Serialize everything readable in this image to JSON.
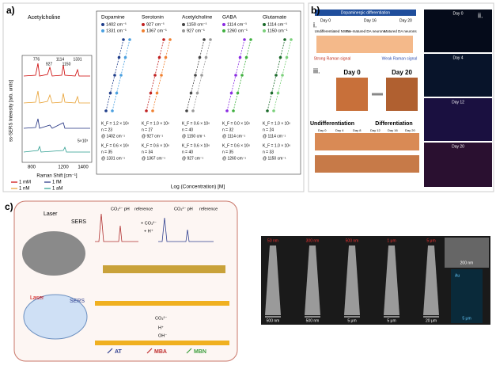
{
  "panel_a": {
    "label": "a)",
    "molecule": "Acetylcholine",
    "y_label": "ss-SERS Intensity [arb. units]",
    "x_label": "Raman Shift [cm⁻¹]",
    "x_ticks": [
      "800",
      "1200",
      "1400"
    ],
    "peaks": [
      "776",
      "927",
      "1114",
      "1150",
      "1331"
    ],
    "scale": "5×10³",
    "legend": [
      "1 mM",
      "1 fM",
      "1 nM",
      "1 aM"
    ],
    "analytes": [
      {
        "name": "Dopamine",
        "bands": [
          "1402 cm⁻¹",
          "1331 cm⁻¹"
        ],
        "stats": [
          "K_F = 1.2 × 10⁶",
          "n = 23",
          "@ 1402 cm⁻¹",
          "K_F = 0.6 × 10⁶",
          "n = 35",
          "@ 1331 cm⁻¹"
        ]
      },
      {
        "name": "Serotonin",
        "bands": [
          "927 cm⁻¹",
          "1367 cm⁻¹"
        ],
        "stats": [
          "K_F = 1.0 × 10⁶",
          "n = 27",
          "@ 927 cm⁻¹",
          "K_F = 0.6 × 10⁶",
          "n = 34",
          "@ 1367 cm⁻¹"
        ]
      },
      {
        "name": "Acetylcholine",
        "bands": [
          "1150 cm⁻¹",
          "927 cm⁻¹"
        ],
        "stats": [
          "K_F = 0.6 × 10⁶",
          "n = 40",
          "@ 1150 cm⁻¹",
          "K_F = 0.6 × 10⁶",
          "n = 40",
          "@ 927 cm⁻¹"
        ]
      },
      {
        "name": "GABA",
        "bands": [
          "1114 cm⁻¹",
          "1260 cm⁻¹"
        ],
        "stats": [
          "K_F = 0.0 × 10⁶",
          "n = 32",
          "@ 1114 cm⁻¹",
          "K_F = 0.6 × 10⁶",
          "n = 35",
          "@ 1260 cm⁻¹"
        ]
      },
      {
        "name": "Glutamate",
        "bands": [
          "1114 cm⁻¹",
          "1150 cm⁻¹"
        ],
        "stats": [
          "K_F = 1.0 × 10⁶",
          "n = 24",
          "@ 1114 cm⁻¹",
          "K_F = 1.0 × 10⁶",
          "n = 33",
          "@ 1150 cm⁻¹"
        ]
      }
    ],
    "conc_axis_label": "Log (Concentration) [M]"
  },
  "panel_b": {
    "label": "b)",
    "header": "Dopaminergic differentiation",
    "sub_i": "i.",
    "days_i": [
      "Day 0",
      "Day 16",
      "Day 20"
    ],
    "stages": [
      "Undifferentiated NSCs",
      "Pre-matured DA neurons",
      "Matured DA neurons"
    ],
    "signals": [
      "Strong Raman signal",
      "Weak Raman signal"
    ],
    "sub_iii": "iii.",
    "days_iii": [
      "Day 0",
      "Day 20"
    ],
    "states": [
      "Undifferentiation",
      "Differentiation"
    ],
    "strip_days": [
      "Day 0",
      "Day 4",
      "Day 8",
      "Day 12",
      "Day 16",
      "Day 20"
    ],
    "sub_ii": "ii.",
    "days_ii": [
      "Day 0",
      "Day 4",
      "Day 12",
      "Day 20"
    ]
  },
  "panel_c": {
    "label": "c)",
    "laser_top": "Laser",
    "sers_top": "SERS",
    "laser_bottom": "Laser",
    "sers_bottom": "SERS",
    "spectrum_labels": [
      "CO₃²⁻ pH",
      "reference",
      "CO₃²⁻ pH",
      "reference"
    ],
    "add_co3": "+ CO₃²⁻",
    "add_h": "+ H⁺",
    "co3": "CO₃²⁻",
    "h": "H⁺",
    "oh": "OH⁻",
    "molecules": [
      "AT",
      "MBA",
      "MBN"
    ],
    "tip_sizes": [
      "50 nm",
      "300 nm",
      "500 nm",
      "1 μm",
      "5 μm"
    ],
    "scale_bars": [
      "500 nm",
      "500 nm",
      "5 μm",
      "5 μm",
      "20 μm"
    ],
    "inset_scale": "200 nm",
    "au": "Au",
    "au_scale": "5 μm"
  }
}
